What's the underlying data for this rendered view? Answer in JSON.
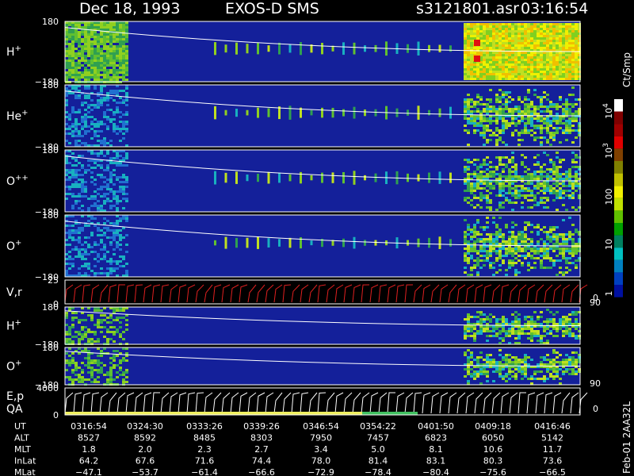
{
  "header": {
    "date": "Dec 18, 1993",
    "instrument": "EXOS-D SMS",
    "file": "s3121801.asr",
    "time": "03:16:54"
  },
  "panels": [
    {
      "label": "H",
      "sup": "+",
      "top": "180",
      "bottom": "−180"
    },
    {
      "label": "He",
      "sup": "+",
      "top": "180",
      "bottom": "−180"
    },
    {
      "label": "O",
      "sup": "++",
      "top": "180",
      "bottom": "−180"
    },
    {
      "label": "O",
      "sup": "+",
      "top": "180",
      "bottom": "−180"
    },
    {
      "label": "V,r",
      "top": "25",
      "bottom": "0",
      "right_top": "90",
      "right_bottom": "0"
    },
    {
      "label": "H",
      "sup": "+",
      "top": "180",
      "bottom": "−180"
    },
    {
      "label": "O",
      "sup": "+",
      "top": "180",
      "bottom": "−180",
      "right_top": "90"
    },
    {
      "label": "E,p",
      "label2": "QA",
      "top": "4000",
      "bottom": "0",
      "right_bottom": "0"
    }
  ],
  "colorbar": {
    "unit": "Ct/Smp",
    "ticks": [
      {
        "base": "10",
        "exp": "4"
      },
      {
        "base": "10",
        "exp": "3"
      },
      {
        "base": "100"
      },
      {
        "base": "10"
      },
      {
        "base": "1"
      }
    ]
  },
  "table": {
    "rows": [
      {
        "label": "UT",
        "values": [
          "0316:54",
          "0324:30",
          "0333:26",
          "0339:26",
          "0346:54",
          "0354:22",
          "0401:50",
          "0409:18",
          "0416:46"
        ]
      },
      {
        "label": "ALT",
        "values": [
          "8527",
          "8592",
          "8485",
          "8303",
          "7950",
          "7457",
          "6823",
          "6050",
          "5142"
        ]
      },
      {
        "label": "MLT",
        "values": [
          "1.8",
          "2.0",
          "2.3",
          "2.7",
          "3.4",
          "5.0",
          "8.1",
          "10.6",
          "11.7"
        ]
      },
      {
        "label": "InLat",
        "values": [
          "64.2",
          "67.6",
          "71.6",
          "74.4",
          "78.0",
          "81.4",
          "83.1",
          "80.3",
          "73.6"
        ]
      },
      {
        "label": "MLat",
        "values": [
          "−47.1",
          "−53.7",
          "−61.4",
          "−66.6",
          "−72.9",
          "−78.4",
          "−80.4",
          "−75.6",
          "−66.5"
        ]
      }
    ]
  },
  "side_label": "Feb-01 2AA32L"
}
